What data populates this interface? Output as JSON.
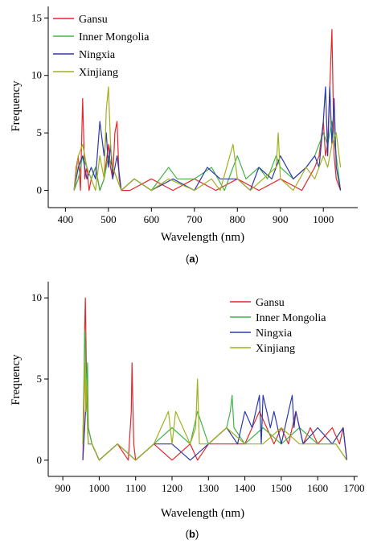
{
  "panels": [
    {
      "label_open": "(",
      "label_letter": "a",
      "label_close": ")"
    },
    {
      "label_open": "(",
      "label_letter": "b",
      "label_close": ")"
    }
  ],
  "colors": {
    "Gansu": "#e8262a",
    "Inner Mongolia": "#3fb548",
    "Ningxia": "#2b3aa6",
    "Xinjiang": "#a2b01f"
  },
  "chart_data": [
    {
      "type": "line",
      "title": "",
      "xlabel": "Wavelength (nm)",
      "ylabel": "Frequency",
      "xlim": [
        360,
        1080
      ],
      "ylim": [
        -1.5,
        16
      ],
      "xticks": [
        400,
        500,
        600,
        700,
        800,
        900,
        1000
      ],
      "yticks": [
        0,
        5,
        10,
        15
      ],
      "legend_position": "top-left",
      "series": [
        {
          "name": "Gansu",
          "x": [
            420,
            425,
            430,
            435,
            440,
            445,
            450,
            455,
            460,
            470,
            480,
            490,
            500,
            505,
            510,
            515,
            520,
            525,
            530,
            550,
            600,
            650,
            700,
            750,
            800,
            850,
            900,
            950,
            980,
            990,
            1000,
            1005,
            1010,
            1015,
            1020,
            1025,
            1030,
            1040
          ],
          "y": [
            0,
            2,
            3,
            0,
            8,
            1,
            2,
            0,
            1,
            2,
            0,
            1,
            4,
            2,
            1,
            5,
            6,
            1,
            0,
            0,
            1,
            0,
            1,
            0,
            1,
            0,
            1,
            0,
            2,
            3,
            6,
            3,
            4,
            9,
            14,
            3,
            1,
            0
          ]
        },
        {
          "name": "Inner Mongolia",
          "x": [
            420,
            430,
            440,
            450,
            460,
            470,
            480,
            490,
            500,
            510,
            520,
            530,
            560,
            600,
            640,
            660,
            700,
            740,
            770,
            790,
            800,
            820,
            850,
            870,
            890,
            900,
            930,
            960,
            980,
            1000,
            1010,
            1020,
            1030,
            1040
          ],
          "y": [
            0,
            1,
            3,
            2,
            1,
            2,
            0,
            1,
            3,
            2,
            1,
            0,
            1,
            0,
            2,
            1,
            1,
            2,
            0,
            2,
            3,
            1,
            2,
            1,
            3,
            2,
            1,
            2,
            3,
            5,
            4,
            6,
            3,
            0
          ]
        },
        {
          "name": "Ningxia",
          "x": [
            420,
            430,
            440,
            450,
            460,
            470,
            480,
            490,
            495,
            500,
            505,
            510,
            520,
            530,
            560,
            600,
            650,
            700,
            730,
            760,
            800,
            830,
            850,
            880,
            900,
            930,
            960,
            980,
            990,
            1000,
            1005,
            1010,
            1015,
            1020,
            1025,
            1030,
            1040
          ],
          "y": [
            0,
            2,
            3,
            1,
            2,
            1,
            6,
            3,
            5,
            2,
            4,
            1,
            3,
            0,
            1,
            0,
            1,
            0,
            2,
            1,
            1,
            0,
            2,
            1,
            3,
            1,
            2,
            3,
            2,
            6,
            9,
            3,
            9,
            4,
            8,
            2,
            0
          ]
        },
        {
          "name": "Xinjiang",
          "x": [
            420,
            430,
            440,
            450,
            460,
            470,
            480,
            490,
            495,
            500,
            505,
            510,
            520,
            530,
            560,
            600,
            640,
            700,
            740,
            760,
            790,
            800,
            830,
            860,
            890,
            895,
            900,
            930,
            960,
            980,
            1000,
            1010,
            1020,
            1030,
            1040
          ],
          "y": [
            0,
            3,
            4,
            2,
            1,
            0,
            3,
            1,
            7,
            9,
            4,
            2,
            1,
            0,
            1,
            0,
            1,
            0,
            1,
            0,
            4,
            1,
            0,
            1,
            2,
            5,
            1,
            0,
            2,
            1,
            3,
            2,
            4,
            5,
            2
          ]
        }
      ]
    },
    {
      "type": "line",
      "title": "",
      "xlabel": "Wavelength (nm)",
      "ylabel": "Frequency",
      "xlim": [
        860,
        1710
      ],
      "ylim": [
        -1,
        11
      ],
      "xticks": [
        900,
        1000,
        1100,
        1200,
        1300,
        1400,
        1500,
        1600,
        1700
      ],
      "yticks": [
        0,
        5,
        10
      ],
      "legend_position": "top-right",
      "series": [
        {
          "name": "Gansu",
          "x": [
            955,
            958,
            960,
            962,
            965,
            970,
            980,
            1000,
            1050,
            1080,
            1088,
            1090,
            1095,
            1100,
            1150,
            1200,
            1250,
            1270,
            1300,
            1400,
            1420,
            1440,
            1460,
            1480,
            1500,
            1520,
            1540,
            1560,
            1580,
            1600,
            1640,
            1660,
            1670,
            1675,
            1680
          ],
          "y": [
            0,
            3,
            8,
            10,
            5,
            2,
            1,
            0,
            1,
            0,
            3,
            6,
            1,
            0,
            1,
            0,
            1,
            0,
            1,
            1,
            2,
            3,
            2,
            1,
            2,
            1,
            3,
            1,
            2,
            1,
            2,
            1,
            2,
            1,
            0
          ]
        },
        {
          "name": "Inner Mongolia",
          "x": [
            955,
            958,
            960,
            962,
            965,
            968,
            970,
            980,
            1000,
            1050,
            1100,
            1150,
            1200,
            1250,
            1270,
            1300,
            1350,
            1360,
            1365,
            1370,
            1400,
            1450,
            1500,
            1550,
            1600,
            1650,
            1680
          ],
          "y": [
            1,
            5,
            8,
            7,
            4,
            6,
            2,
            1,
            0,
            1,
            0,
            1,
            2,
            1,
            3,
            1,
            2,
            3,
            4,
            2,
            1,
            2,
            1,
            2,
            1,
            1,
            0
          ]
        },
        {
          "name": "Ningxia",
          "x": [
            955,
            960,
            965,
            970,
            980,
            1000,
            1050,
            1100,
            1150,
            1200,
            1250,
            1300,
            1350,
            1380,
            1400,
            1420,
            1440,
            1445,
            1450,
            1460,
            1470,
            1480,
            1500,
            1520,
            1530,
            1535,
            1540,
            1560,
            1600,
            1640,
            1670,
            1675,
            1680
          ],
          "y": [
            0,
            2,
            4,
            1,
            1,
            0,
            1,
            0,
            1,
            1,
            0,
            1,
            2,
            1,
            3,
            2,
            4,
            1,
            4,
            3,
            2,
            3,
            1,
            3,
            4,
            2,
            3,
            1,
            2,
            1,
            2,
            1,
            0
          ]
        },
        {
          "name": "Xinjiang",
          "x": [
            955,
            958,
            960,
            963,
            965,
            968,
            970,
            980,
            1000,
            1050,
            1100,
            1150,
            1190,
            1200,
            1210,
            1250,
            1265,
            1270,
            1275,
            1300,
            1350,
            1400,
            1450,
            1500,
            1550,
            1600,
            1650,
            1680
          ],
          "y": [
            1,
            4,
            6,
            3,
            5,
            2,
            1,
            1,
            0,
            1,
            0,
            1,
            3,
            1,
            3,
            1,
            2,
            5,
            1,
            1,
            2,
            1,
            1,
            2,
            1,
            1,
            1,
            0
          ]
        }
      ]
    }
  ]
}
